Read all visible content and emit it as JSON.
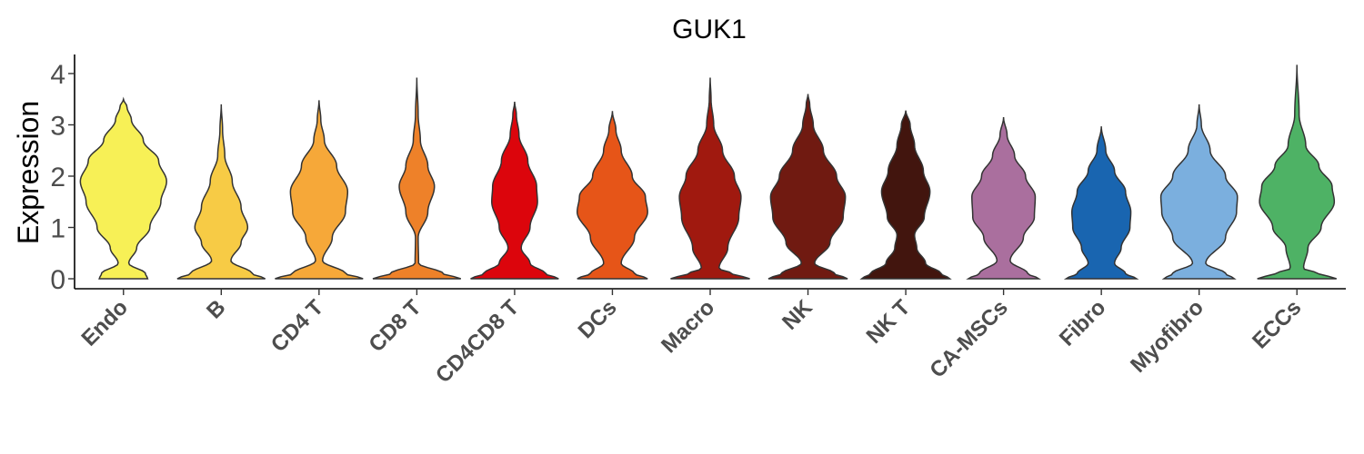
{
  "chart_data": {
    "type": "violin",
    "title": "GUK1",
    "xlabel": "",
    "ylabel": "Expression",
    "ylim": [
      -0.2,
      4.35
    ],
    "yticks": [
      0,
      1,
      2,
      3,
      4
    ],
    "legend": "none",
    "grid": false,
    "categories": [
      "Endo",
      "B",
      "CD4 T",
      "CD8 T",
      "CD4CD8 T",
      "DCs",
      "Macro",
      "NK",
      "NK T",
      "CA-MSCs",
      "Fibro",
      "Myofibro",
      "ECCs"
    ],
    "series": [
      {
        "category": "Endo",
        "color": "#F7F056",
        "max": 3.5,
        "density": [
          [
            0,
            0.55
          ],
          [
            0.1,
            0.5
          ],
          [
            0.3,
            0.12
          ],
          [
            0.6,
            0.3
          ],
          [
            1.0,
            0.6
          ],
          [
            1.5,
            0.85
          ],
          [
            1.9,
            0.98
          ],
          [
            2.3,
            0.8
          ],
          [
            2.7,
            0.45
          ],
          [
            3.1,
            0.18
          ],
          [
            3.35,
            0.08
          ],
          [
            3.5,
            0
          ]
        ]
      },
      {
        "category": "B",
        "color": "#F7CB45",
        "max": 3.4,
        "density": [
          [
            0,
            1.0
          ],
          [
            0.1,
            0.7
          ],
          [
            0.35,
            0.22
          ],
          [
            0.7,
            0.45
          ],
          [
            1.0,
            0.6
          ],
          [
            1.4,
            0.45
          ],
          [
            1.9,
            0.25
          ],
          [
            2.4,
            0.08
          ],
          [
            2.9,
            0.03
          ],
          [
            3.4,
            0
          ]
        ]
      },
      {
        "category": "CD4 T",
        "color": "#F6A839",
        "max": 3.48,
        "density": [
          [
            0,
            1.0
          ],
          [
            0.1,
            0.6
          ],
          [
            0.35,
            0.08
          ],
          [
            0.8,
            0.3
          ],
          [
            1.3,
            0.6
          ],
          [
            1.7,
            0.65
          ],
          [
            2.2,
            0.4
          ],
          [
            2.7,
            0.12
          ],
          [
            3.1,
            0.04
          ],
          [
            3.48,
            0
          ]
        ]
      },
      {
        "category": "CD8 T",
        "color": "#EE8129",
        "max": 3.92,
        "density": [
          [
            0,
            1.0
          ],
          [
            0.1,
            0.6
          ],
          [
            0.3,
            0.04
          ],
          [
            0.8,
            0.03
          ],
          [
            1.3,
            0.25
          ],
          [
            1.8,
            0.4
          ],
          [
            2.2,
            0.25
          ],
          [
            2.7,
            0.08
          ],
          [
            3.2,
            0.03
          ],
          [
            3.92,
            0
          ]
        ]
      },
      {
        "category": "CD4CD8 T",
        "color": "#DC050C",
        "max": 3.45,
        "density": [
          [
            0,
            1.0
          ],
          [
            0.1,
            0.7
          ],
          [
            0.3,
            0.35
          ],
          [
            0.6,
            0.15
          ],
          [
            1.0,
            0.35
          ],
          [
            1.5,
            0.52
          ],
          [
            1.8,
            0.5
          ],
          [
            2.3,
            0.3
          ],
          [
            2.8,
            0.1
          ],
          [
            3.2,
            0.04
          ],
          [
            3.45,
            0
          ]
        ]
      },
      {
        "category": "DCs",
        "color": "#E65518",
        "max": 3.27,
        "density": [
          [
            0,
            0.8
          ],
          [
            0.1,
            0.5
          ],
          [
            0.3,
            0.2
          ],
          [
            0.8,
            0.5
          ],
          [
            1.3,
            0.8
          ],
          [
            1.6,
            0.75
          ],
          [
            2.0,
            0.45
          ],
          [
            2.5,
            0.2
          ],
          [
            2.9,
            0.08
          ],
          [
            3.27,
            0
          ]
        ]
      },
      {
        "category": "Macro",
        "color": "#A0190F",
        "max": 3.92,
        "density": [
          [
            0,
            0.9
          ],
          [
            0.1,
            0.5
          ],
          [
            0.2,
            0.2
          ],
          [
            0.6,
            0.4
          ],
          [
            1.2,
            0.65
          ],
          [
            1.6,
            0.7
          ],
          [
            2.0,
            0.55
          ],
          [
            2.5,
            0.28
          ],
          [
            3.0,
            0.08
          ],
          [
            3.5,
            0.02
          ],
          [
            3.92,
            0
          ]
        ]
      },
      {
        "category": "NK",
        "color": "#701A11",
        "max": 3.6,
        "density": [
          [
            0,
            0.9
          ],
          [
            0.1,
            0.6
          ],
          [
            0.3,
            0.15
          ],
          [
            0.7,
            0.5
          ],
          [
            1.2,
            0.8
          ],
          [
            1.6,
            0.85
          ],
          [
            2.0,
            0.65
          ],
          [
            2.5,
            0.35
          ],
          [
            3.0,
            0.12
          ],
          [
            3.4,
            0.04
          ],
          [
            3.6,
            0
          ]
        ]
      },
      {
        "category": "NK T",
        "color": "#42150E",
        "max": 3.28,
        "density": [
          [
            0,
            1.0
          ],
          [
            0.1,
            0.8
          ],
          [
            0.3,
            0.45
          ],
          [
            0.6,
            0.25
          ],
          [
            0.85,
            0.2
          ],
          [
            1.2,
            0.42
          ],
          [
            1.7,
            0.55
          ],
          [
            2.1,
            0.4
          ],
          [
            2.6,
            0.2
          ],
          [
            3.0,
            0.1
          ],
          [
            3.28,
            0
          ]
        ]
      },
      {
        "category": "CA-MSCs",
        "color": "#AA6F9E",
        "max": 3.15,
        "density": [
          [
            0,
            0.8
          ],
          [
            0.1,
            0.55
          ],
          [
            0.35,
            0.15
          ],
          [
            0.8,
            0.45
          ],
          [
            1.2,
            0.7
          ],
          [
            1.6,
            0.72
          ],
          [
            2.0,
            0.5
          ],
          [
            2.4,
            0.25
          ],
          [
            2.8,
            0.08
          ],
          [
            3.15,
            0
          ]
        ]
      },
      {
        "category": "Fibro",
        "color": "#1965B0",
        "max": 2.97,
        "density": [
          [
            0,
            0.8
          ],
          [
            0.1,
            0.55
          ],
          [
            0.3,
            0.3
          ],
          [
            0.6,
            0.45
          ],
          [
            1.0,
            0.65
          ],
          [
            1.3,
            0.67
          ],
          [
            1.7,
            0.55
          ],
          [
            2.1,
            0.3
          ],
          [
            2.5,
            0.1
          ],
          [
            2.97,
            0
          ]
        ]
      },
      {
        "category": "Myofibro",
        "color": "#7BAFDE",
        "max": 3.4,
        "density": [
          [
            0,
            0.8
          ],
          [
            0.1,
            0.6
          ],
          [
            0.3,
            0.15
          ],
          [
            0.8,
            0.6
          ],
          [
            1.3,
            0.85
          ],
          [
            1.6,
            0.87
          ],
          [
            2.0,
            0.6
          ],
          [
            2.5,
            0.25
          ],
          [
            3.0,
            0.05
          ],
          [
            3.4,
            0
          ]
        ]
      },
      {
        "category": "ECCs",
        "color": "#4EB265",
        "max": 4.17,
        "density": [
          [
            0,
            0.9
          ],
          [
            0.1,
            0.5
          ],
          [
            0.2,
            0.15
          ],
          [
            0.6,
            0.25
          ],
          [
            1.0,
            0.55
          ],
          [
            1.5,
            0.85
          ],
          [
            1.8,
            0.8
          ],
          [
            2.2,
            0.5
          ],
          [
            2.6,
            0.2
          ],
          [
            3.2,
            0.05
          ],
          [
            4.17,
            0
          ]
        ]
      }
    ]
  }
}
